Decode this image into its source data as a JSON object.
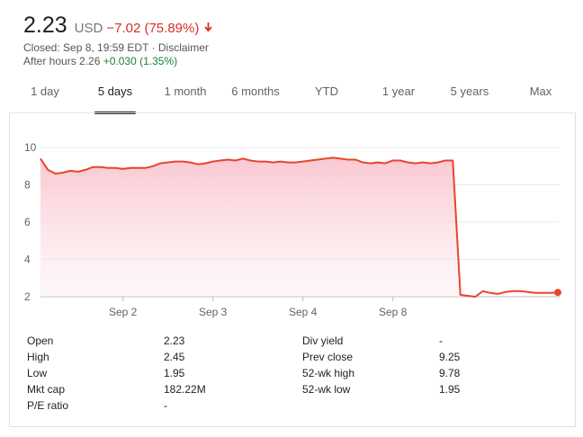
{
  "quote": {
    "price": "2.23",
    "currency": "USD",
    "change": "−7.02 (75.89%)",
    "direction_icon": "arrow-down-icon",
    "closed_text": "Closed: Sep 8, 19:59 EDT",
    "separator": " · ",
    "disclaimer": "Disclaimer",
    "after_hours_label": "After hours 2.26",
    "after_hours_change": "+0.030 (1.35%)"
  },
  "colors": {
    "down": "#d93025",
    "up": "#188038",
    "fill": "#fbd3da",
    "line": "#e8452c"
  },
  "tabs": [
    {
      "label": "1 day"
    },
    {
      "label": "5 days",
      "active": true
    },
    {
      "label": "1 month"
    },
    {
      "label": "6 months"
    },
    {
      "label": "YTD"
    },
    {
      "label": "1 year"
    },
    {
      "label": "5 years"
    },
    {
      "label": "Max"
    }
  ],
  "chart_data": {
    "type": "area",
    "y_ticks": [
      "10",
      "8",
      "6",
      "4",
      "2"
    ],
    "y_tick_values": [
      10,
      8,
      6,
      4,
      2
    ],
    "ylim": [
      2,
      10
    ],
    "x_tick_labels": [
      "Sep 2",
      "Sep 3",
      "Sep 4",
      "Sep 8"
    ],
    "x_tick_index": [
      11,
      23,
      35,
      47
    ],
    "grid": true,
    "series": [
      {
        "values": [
          9.4,
          8.8,
          8.6,
          8.65,
          8.75,
          8.7,
          8.8,
          8.95,
          8.95,
          8.9,
          8.9,
          8.85,
          8.9,
          8.9,
          8.9,
          9.0,
          9.15,
          9.2,
          9.25,
          9.25,
          9.2,
          9.1,
          9.15,
          9.25,
          9.3,
          9.35,
          9.3,
          9.4,
          9.3,
          9.25,
          9.25,
          9.2,
          9.25,
          9.2,
          9.2,
          9.25,
          9.3,
          9.35,
          9.4,
          9.45,
          9.4,
          9.35,
          9.35,
          9.2,
          9.15,
          9.2,
          9.15,
          9.3,
          9.3,
          9.2,
          9.15,
          9.2,
          9.15,
          9.2,
          9.3,
          9.3,
          2.1,
          2.05,
          2.0,
          2.3,
          2.2,
          2.15,
          2.25,
          2.3,
          2.3,
          2.25,
          2.2,
          2.2,
          2.2,
          2.23
        ]
      }
    ],
    "x_count": 70,
    "last_index": 69
  },
  "stats": {
    "left": [
      {
        "label": "Open",
        "value": "2.23"
      },
      {
        "label": "High",
        "value": "2.45"
      },
      {
        "label": "Low",
        "value": "1.95"
      },
      {
        "label": "Mkt cap",
        "value": "182.22M"
      },
      {
        "label": "P/E ratio",
        "value": "-"
      }
    ],
    "right": [
      {
        "label": "Div yield",
        "value": "-"
      },
      {
        "label": "Prev close",
        "value": "9.25"
      },
      {
        "label": "52-wk high",
        "value": "9.78"
      },
      {
        "label": "52-wk low",
        "value": "1.95"
      }
    ]
  }
}
